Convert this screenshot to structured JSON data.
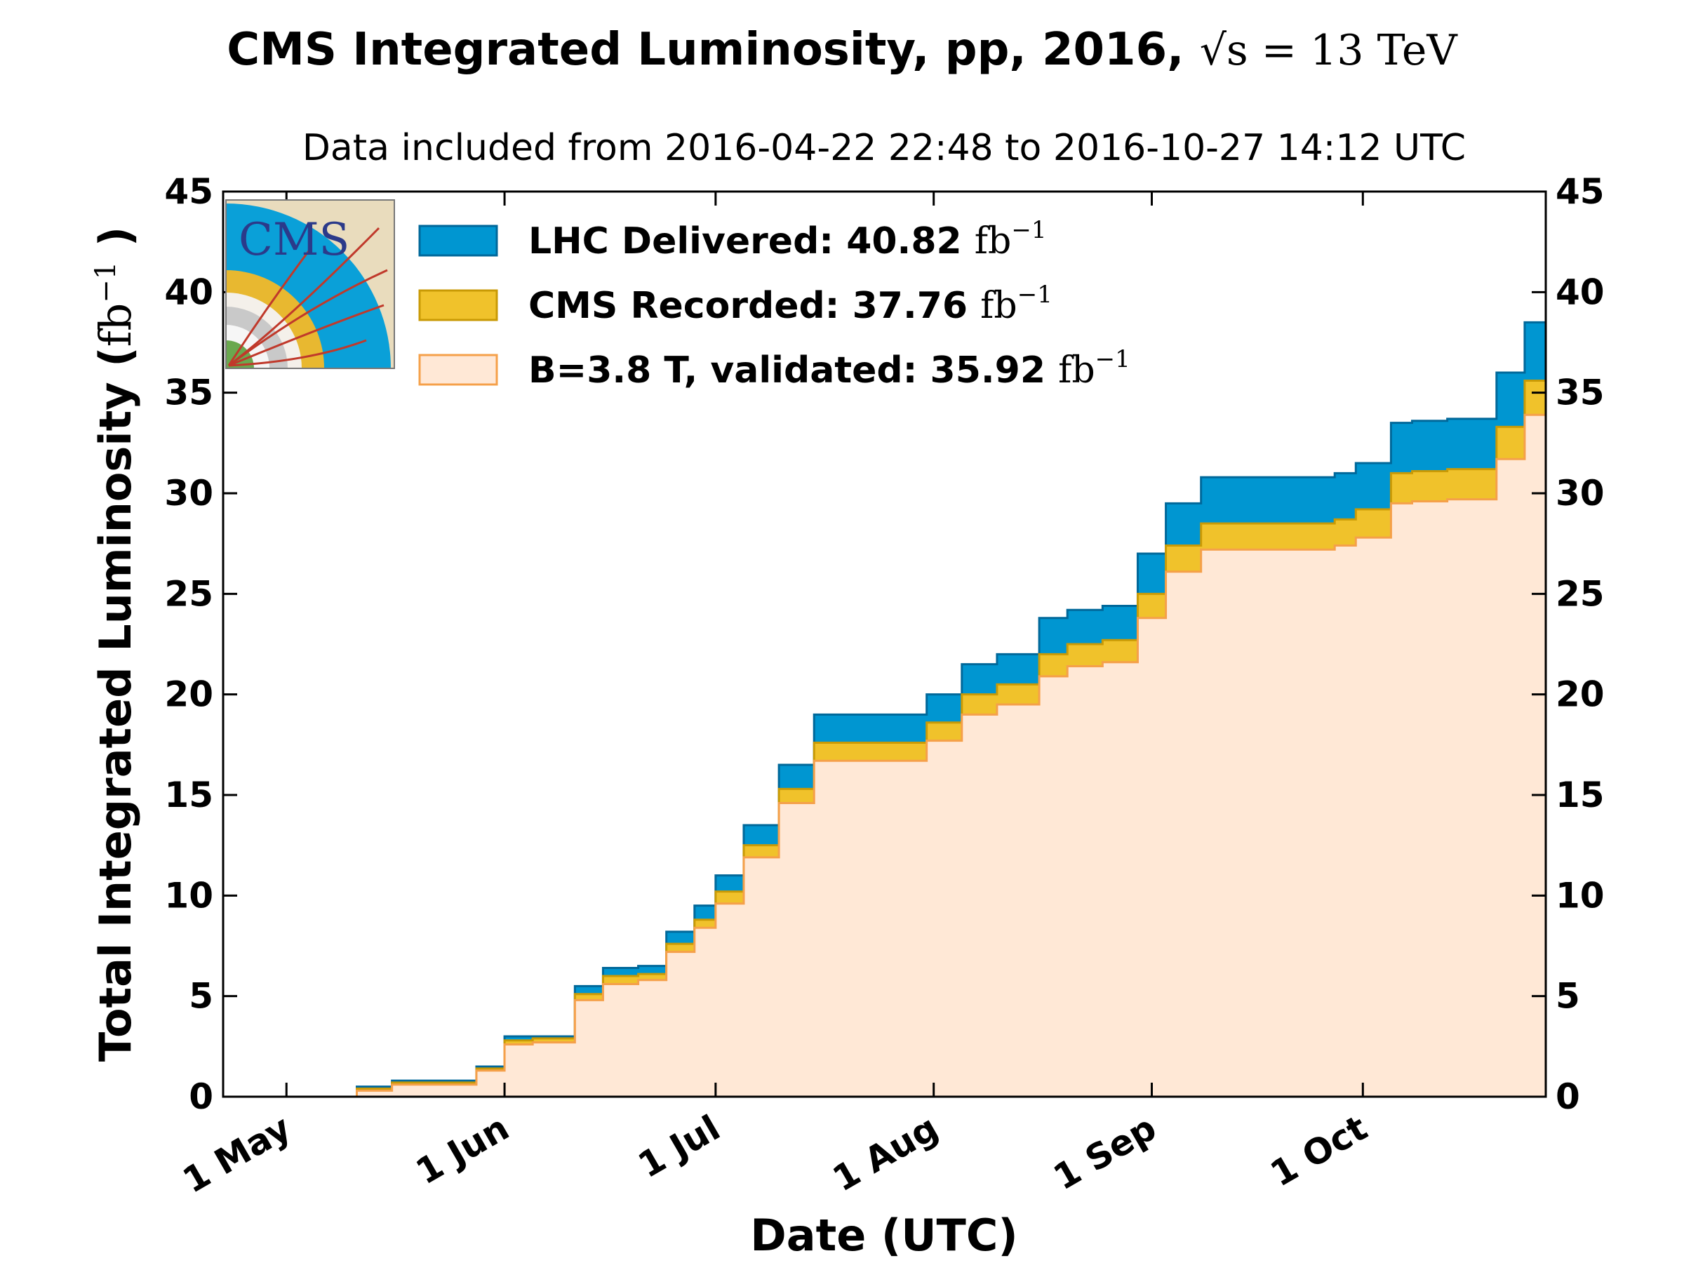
{
  "colors": {
    "delivered_fill": "#0096d1",
    "delivered_edge": "#00689a",
    "recorded_fill": "#f0c22b",
    "recorded_edge": "#c99a05",
    "validated_fill": "#ffe8d6",
    "validated_edge": "#f5a04a",
    "logo_bg": "#e9dcbd",
    "logo_blue": "#0aa0d8",
    "logo_yellow": "#e8b830"
  },
  "logo": {
    "text": "CMS"
  },
  "chart_data": {
    "type": "area",
    "title_prefix": "CMS Integrated Luminosity, pp, 2016,",
    "title_math": "√s = 13 TeV",
    "subtitle": "Data included from 2016-04-22 22:48 to 2016-10-27 14:12 UTC",
    "xlabel": "Date (UTC)",
    "ylabel_text": "Total Integrated Luminosity",
    "ylabel_unit": "fb",
    "ylabel_exp": "−1",
    "xlim": [
      "2016-04-22",
      "2016-10-27"
    ],
    "ylim": [
      0,
      45
    ],
    "yticks": [
      0,
      5,
      10,
      15,
      20,
      25,
      30,
      35,
      40,
      45
    ],
    "xticks": [
      {
        "date": "2016-05-01",
        "label": "1 May"
      },
      {
        "date": "2016-06-01",
        "label": "1 Jun"
      },
      {
        "date": "2016-07-01",
        "label": "1 Jul"
      },
      {
        "date": "2016-08-01",
        "label": "1 Aug"
      },
      {
        "date": "2016-09-01",
        "label": "1 Sep"
      },
      {
        "date": "2016-10-01",
        "label": "1 Oct"
      }
    ],
    "grid": false,
    "legend_position": "top-left",
    "x": [
      "2016-04-22",
      "2016-05-06",
      "2016-05-11",
      "2016-05-16",
      "2016-05-24",
      "2016-05-28",
      "2016-06-01",
      "2016-06-05",
      "2016-06-11",
      "2016-06-15",
      "2016-06-20",
      "2016-06-24",
      "2016-06-28",
      "2016-07-01",
      "2016-07-05",
      "2016-07-10",
      "2016-07-15",
      "2016-07-20",
      "2016-07-24",
      "2016-07-31",
      "2016-08-05",
      "2016-08-10",
      "2016-08-16",
      "2016-08-20",
      "2016-08-25",
      "2016-08-30",
      "2016-09-03",
      "2016-09-08",
      "2016-09-15",
      "2016-09-22",
      "2016-09-27",
      "2016-09-30",
      "2016-10-05",
      "2016-10-08",
      "2016-10-13",
      "2016-10-20",
      "2016-10-24",
      "2016-10-27"
    ],
    "series": [
      {
        "name": "LHC Delivered",
        "legend_label": "LHC Delivered: 40.82",
        "legend_unit": "fb",
        "legend_exp": "−1",
        "values": [
          0,
          0,
          0.5,
          0.8,
          0.8,
          1.5,
          3.0,
          3.0,
          5.5,
          6.4,
          6.5,
          8.2,
          9.5,
          11.0,
          13.5,
          16.5,
          19.0,
          19.0,
          19.0,
          20.0,
          21.5,
          22.0,
          23.8,
          24.2,
          24.4,
          27.0,
          29.5,
          30.8,
          30.8,
          30.8,
          31.0,
          31.5,
          33.5,
          33.6,
          33.7,
          36.0,
          38.5,
          40.82
        ]
      },
      {
        "name": "CMS Recorded",
        "legend_label": "CMS Recorded: 37.76",
        "legend_unit": "fb",
        "legend_exp": "−1",
        "values": [
          0,
          0,
          0.4,
          0.7,
          0.7,
          1.4,
          2.8,
          2.9,
          5.1,
          6.0,
          6.1,
          7.6,
          8.8,
          10.2,
          12.5,
          15.3,
          17.6,
          17.6,
          17.6,
          18.6,
          20.0,
          20.5,
          22.0,
          22.5,
          22.7,
          25.0,
          27.4,
          28.5,
          28.5,
          28.5,
          28.7,
          29.2,
          31.0,
          31.1,
          31.2,
          33.3,
          35.6,
          37.76
        ]
      },
      {
        "name": "B=3.8 T, validated",
        "legend_label": "B=3.8 T, validated: 35.92",
        "legend_unit": "fb",
        "legend_exp": "−1",
        "values": [
          0,
          0,
          0.3,
          0.6,
          0.6,
          1.3,
          2.6,
          2.7,
          4.8,
          5.6,
          5.8,
          7.2,
          8.4,
          9.6,
          11.9,
          14.6,
          16.7,
          16.7,
          16.7,
          17.7,
          19.0,
          19.5,
          20.9,
          21.4,
          21.6,
          23.8,
          26.1,
          27.2,
          27.2,
          27.2,
          27.4,
          27.8,
          29.5,
          29.6,
          29.7,
          31.7,
          33.9,
          35.92
        ]
      }
    ]
  }
}
